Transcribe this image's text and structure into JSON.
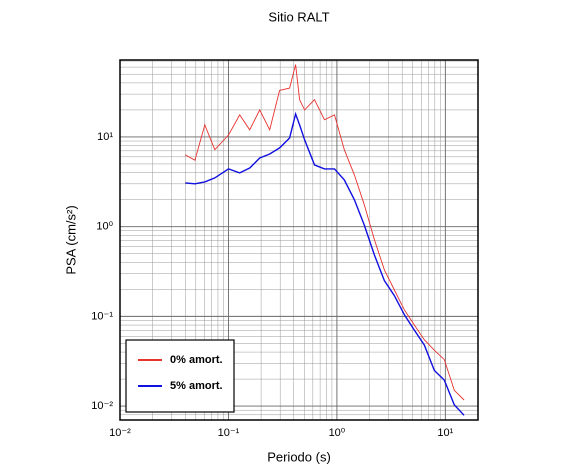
{
  "chart_data": {
    "type": "line",
    "title": "Sitio RALT",
    "x_label": "Periodo (s)",
    "y_label": "PSA (cm/s²)",
    "log_x": true,
    "log_y": true,
    "grid": true,
    "legend": "lower left",
    "xlim": [
      0.01,
      20
    ],
    "ylim": [
      0.007,
      72
    ],
    "xticks": [
      {
        "value": 0.01,
        "label": "10⁻²"
      },
      {
        "value": 0.1,
        "label": "10⁻¹"
      },
      {
        "value": 1,
        "label": "10⁰"
      },
      {
        "value": 10,
        "label": "10¹"
      }
    ],
    "yticks": [
      {
        "value": 0.01,
        "label": "10⁻²"
      },
      {
        "value": 0.1,
        "label": "10⁻¹"
      },
      {
        "value": 1,
        "label": "10⁰"
      },
      {
        "value": 10,
        "label": "10¹"
      }
    ],
    "x": [
      0.04,
      0.049,
      0.0605,
      0.0748,
      0.1,
      0.127,
      0.157,
      0.194,
      0.24,
      0.296,
      0.366,
      0.416,
      0.453,
      0.504,
      0.622,
      0.769,
      0.95,
      1.17,
      1.45,
      1.79,
      2.22,
      2.74,
      3.39,
      4.19,
      5.18,
      6.4,
      7.91,
      9.77,
      12.1,
      14.9
    ],
    "series": [
      {
        "name": "0% amort.",
        "color": "#e8322e",
        "values": [
          6.3,
          5.5,
          13.6,
          7.2,
          10.5,
          17.6,
          12.0,
          20,
          12.0,
          33,
          35,
          64,
          26,
          20,
          26,
          15.5,
          17.6,
          7.2,
          3.77,
          1.75,
          0.71,
          0.33,
          0.197,
          0.118,
          0.08,
          0.055,
          0.042,
          0.033,
          0.015,
          0.0117
        ]
      },
      {
        "name": "5% amort.",
        "color": "#1010e0",
        "values": [
          3.07,
          3.0,
          3.15,
          3.49,
          4.4,
          3.97,
          4.51,
          5.83,
          6.46,
          7.54,
          9.74,
          18.0,
          13.6,
          9.3,
          4.88,
          4.4,
          4.4,
          3.32,
          1.99,
          1.04,
          0.48,
          0.25,
          0.17,
          0.104,
          0.07,
          0.048,
          0.025,
          0.0195,
          0.0103,
          0.0079
        ]
      }
    ]
  }
}
